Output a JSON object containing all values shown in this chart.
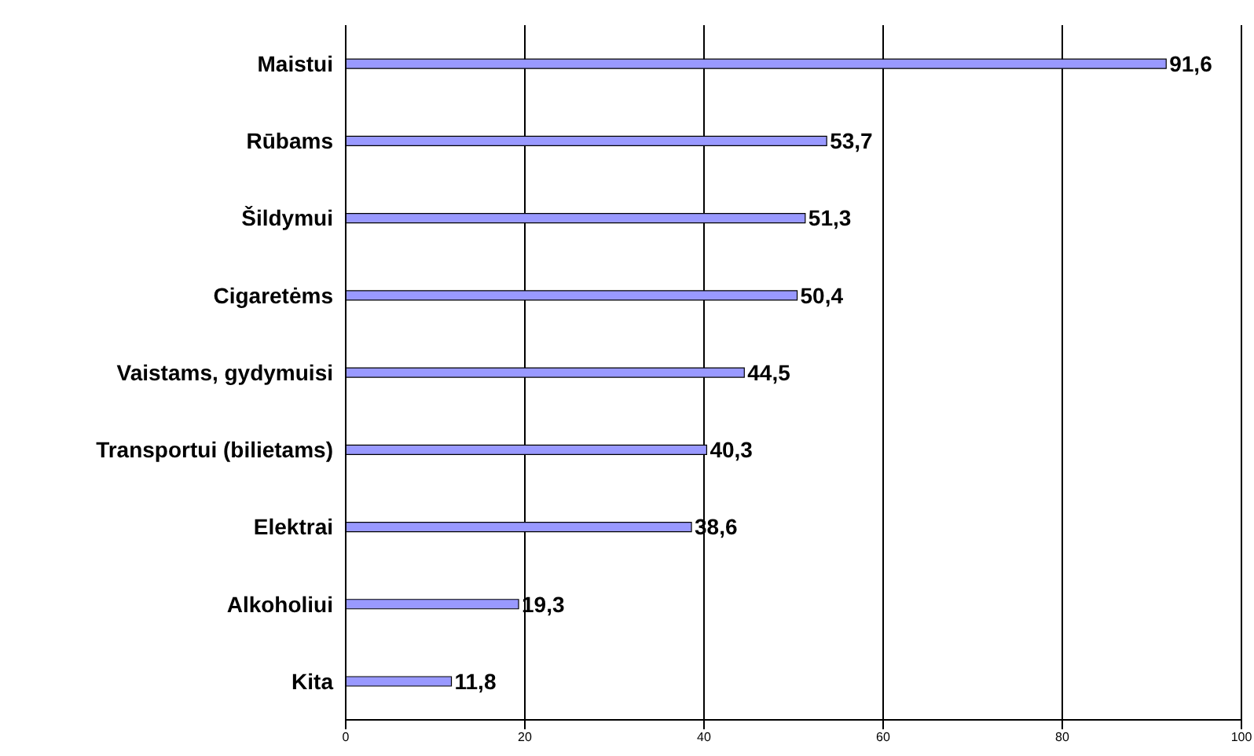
{
  "chart_data": {
    "type": "bar",
    "orientation": "horizontal",
    "categories": [
      "Maistui",
      "Rūbams",
      "Šildymui",
      "Cigaretėms",
      "Vaistams, gydymuisi",
      "Transportui (bilietams)",
      "Elektrai",
      "Alkoholiui",
      "Kita"
    ],
    "values": [
      91.6,
      53.7,
      51.3,
      50.4,
      44.5,
      40.3,
      38.6,
      19.3,
      11.8
    ],
    "value_labels": [
      "91,6",
      "53,7",
      "51,3",
      "50,4",
      "44,5",
      "40,3",
      "38,6",
      "19,3",
      "11,8"
    ],
    "color": "#9999ff",
    "xlim": [
      0,
      100
    ],
    "xticks": [
      0,
      20,
      40,
      60,
      80,
      100
    ],
    "grid": "x",
    "legend": false
  }
}
